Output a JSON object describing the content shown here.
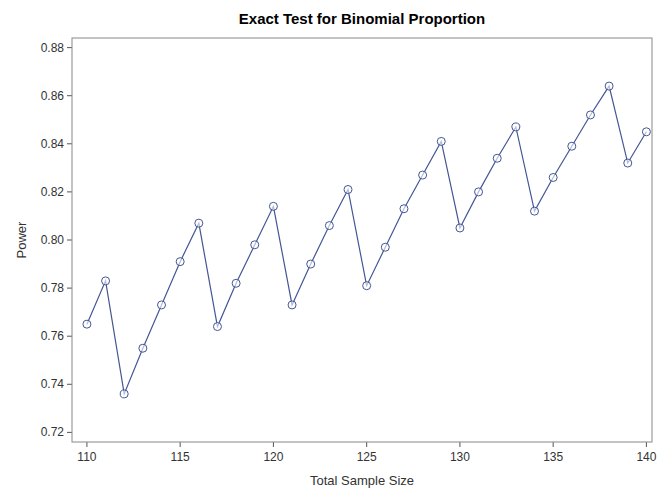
{
  "chart_data": {
    "type": "line",
    "title": "Exact Test for Binomial Proportion",
    "x_label": "Total Sample Size",
    "y_label": "Power",
    "x": [
      110,
      111,
      112,
      113,
      114,
      115,
      116,
      117,
      118,
      119,
      120,
      121,
      122,
      123,
      124,
      125,
      126,
      127,
      128,
      129,
      130,
      131,
      132,
      133,
      134,
      135,
      136,
      137,
      138,
      139,
      140
    ],
    "values": [
      0.765,
      0.783,
      0.736,
      0.755,
      0.773,
      0.791,
      0.807,
      0.764,
      0.782,
      0.798,
      0.814,
      0.773,
      0.79,
      0.806,
      0.821,
      0.781,
      0.797,
      0.813,
      0.827,
      0.841,
      0.805,
      0.82,
      0.834,
      0.847,
      0.812,
      0.826,
      0.839,
      0.852,
      0.864,
      0.832,
      0.845
    ],
    "color": "#445694",
    "marker": "circle",
    "line_style": "solid",
    "xlim": [
      109.2,
      140.3
    ],
    "xticks": [
      110,
      115,
      120,
      125,
      130,
      135,
      140
    ],
    "ylim": [
      0.716,
      0.884
    ],
    "yticks": [
      0.72,
      0.74,
      0.76,
      0.78,
      {
        "value": 0.8,
        "label": "0.80"
      },
      0.82,
      0.84,
      0.86,
      0.88
    ],
    "grid": false
  }
}
